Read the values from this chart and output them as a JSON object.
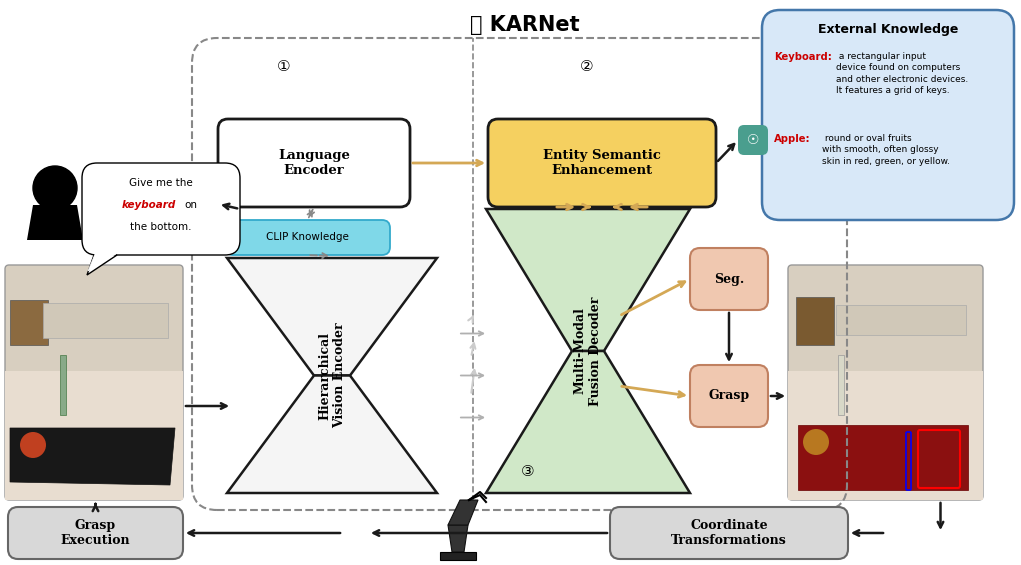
{
  "title": "KARNet",
  "bg_color": "#ffffff",
  "speech_keyword_color": "#cc0000",
  "lang_encoder_label": "Language\nEncoder",
  "lang_encoder_box_color": "#ffffff",
  "lang_encoder_border": "#1a1a1a",
  "clip_label": "CLIP Knowledge",
  "clip_box_color": "#7fd8e8",
  "clip_border": "#33aacc",
  "entity_label": "Entity Semantic\nEnhancement",
  "entity_box_color": "#f5d060",
  "entity_border": "#1a1a1a",
  "hier_label": "Hierarchical\nVision Encoder",
  "hier_fill": "#f5f5f5",
  "hier_border": "#1a1a1a",
  "fusion_label": "Multi-Modal\nFusion Decoder",
  "fusion_fill": "#d0e8c8",
  "fusion_border": "#1a1a1a",
  "seg_label": "Seg.",
  "seg_fill": "#f0c8b0",
  "seg_border": "#c08060",
  "grasp_label": "Grasp",
  "grasp_fill": "#f0c8b0",
  "grasp_border": "#c08060",
  "ext_knowledge_title": "External Knowledge",
  "ext_knowledge_bg": "#d8e8f8",
  "ext_knowledge_border": "#4477aa",
  "keyboard_color": "#cc0000",
  "apple_color": "#cc0000",
  "grasp_exec_label": "Grasp\nExecution",
  "coord_trans_label": "Coordinate\nTransformations",
  "circle1": "①",
  "circle2": "②",
  "circle3": "③",
  "openai_icon_color": "#4a9e8e",
  "arrow_color": "#1a1a1a",
  "dashed_box_color": "#888888",
  "sand_arrow_color": "#d4a855",
  "bottom_box_color": "#d8d8d8",
  "bottom_box_border": "#666666",
  "img_left_color": "#b8c8a0",
  "img_right_color": "#c0a888"
}
